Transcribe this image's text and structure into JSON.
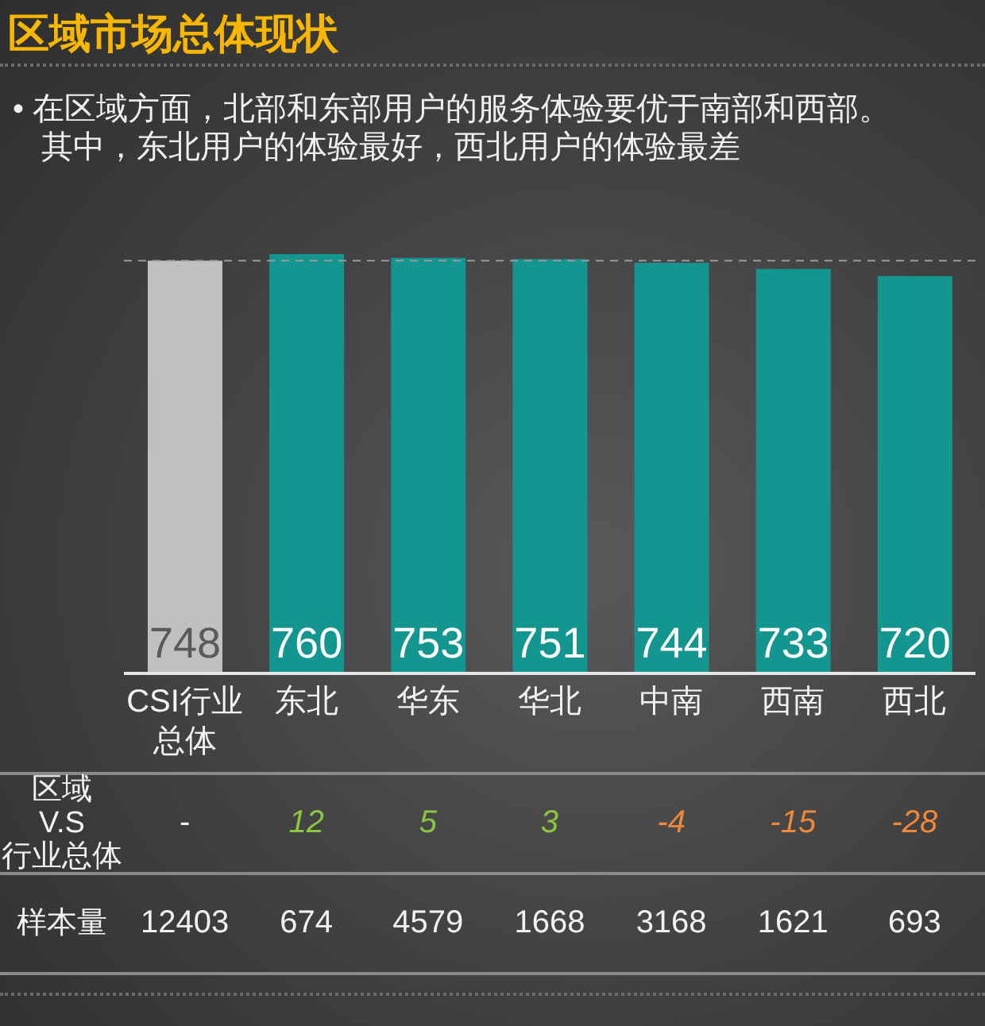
{
  "chart_data": {
    "type": "bar",
    "title": "区域市场总体现状",
    "subtitle": "• 在区域方面，北部和东部用户的服务体验要优于南部和西部。其中，东北用户的体验最好，西北用户的体验最差",
    "categories": [
      "CSI行业总体",
      "东北",
      "华东",
      "华北",
      "中南",
      "西南",
      "西北"
    ],
    "values": [
      748,
      760,
      753,
      751,
      744,
      733,
      720
    ],
    "colors": [
      "#c0c0c0",
      "#12968f",
      "#12968f",
      "#12968f",
      "#12968f",
      "#12968f",
      "#12968f"
    ],
    "data_labels": true,
    "tick_labels": "x",
    "ref_lines": [
      {
        "axis": "y",
        "value": 748,
        "color": "#9a9a9a",
        "line_style": "dashed"
      }
    ],
    "annotations": [
      "区域 V.S 行业总体",
      "-",
      "12",
      "5",
      "3",
      "-4",
      "-15",
      "-28",
      "样本量",
      "12403",
      "674",
      "4579",
      "1668",
      "3168",
      "1621",
      "693"
    ]
  }
}
